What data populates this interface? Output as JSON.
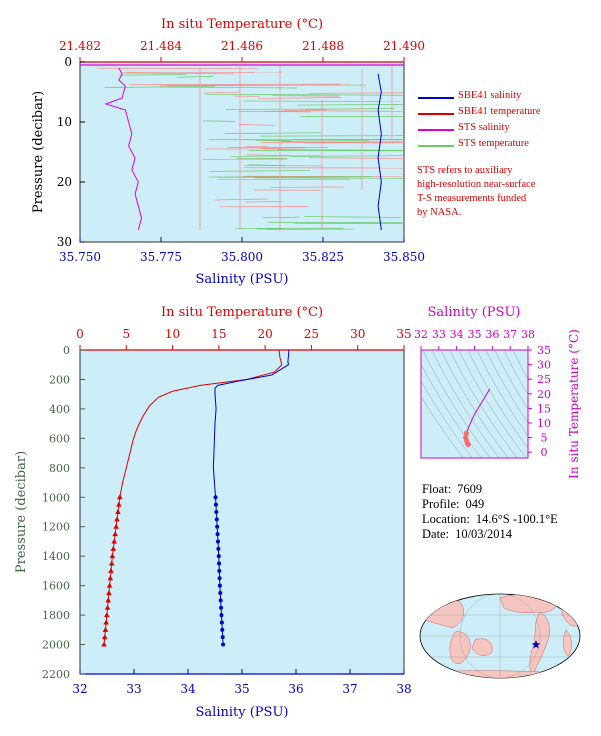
{
  "top_chart": {
    "temp_label": "In situ Temperature (°C)",
    "sal_label": "Salinity (PSU)",
    "pres_label": "Pressure (decibar)",
    "temp_ticks": [
      "21.482",
      "21.484",
      "21.486",
      "21.488",
      "21.490"
    ],
    "sal_ticks": [
      "35.750",
      "35.775",
      "35.800",
      "35.825",
      "35.850"
    ],
    "pres_ticks": [
      "0",
      "10",
      "20",
      "30"
    ]
  },
  "legend": {
    "items": [
      {
        "label": "SBE41 salinity",
        "color": "#0000cc"
      },
      {
        "label": "SBE41 temperature",
        "color": "#dd0000"
      },
      {
        "label": "STS salinity",
        "color": "#dd00dd"
      },
      {
        "label": "STS temperature",
        "color": "#66cc66"
      }
    ]
  },
  "note": {
    "lines": [
      "STS refers to auxiliary",
      "high-resolution near-surface",
      "T-S measurements funded",
      "by NASA."
    ]
  },
  "main_chart": {
    "temp_label": "In situ Temperature (°C)",
    "sal_label": "Salinity (PSU)",
    "pres_label": "Pressure (decibar)",
    "temp_ticks": [
      "0",
      "5",
      "10",
      "15",
      "20",
      "25",
      "30",
      "35"
    ],
    "sal_ticks": [
      "32",
      "33",
      "34",
      "35",
      "36",
      "37",
      "38"
    ],
    "pres_ticks": [
      "0",
      "200",
      "400",
      "600",
      "800",
      "1000",
      "1200",
      "1400",
      "1600",
      "1800",
      "2000",
      "2200"
    ]
  },
  "ts_chart": {
    "sal_label": "Salinity (PSU)",
    "temp_label": "In situ Temperature (°C)",
    "sal_ticks": [
      "32",
      "33",
      "34",
      "35",
      "36",
      "37",
      "38"
    ],
    "temp_ticks": [
      "0",
      "5",
      "10",
      "15",
      "20",
      "25",
      "30",
      "35"
    ]
  },
  "float_info": {
    "float_label": "Float:",
    "float_value": "7609",
    "profile_label": "Profile:",
    "profile_value": "049",
    "location_label": "Location:",
    "location_value": "14.6°S  -100.1°E",
    "date_label": "Date:",
    "date_value": "10/03/2014"
  },
  "colors": {
    "plot_bg": "#cdeef8",
    "salinity": "#0000cc",
    "temperature": "#dd0000",
    "sts_salinity": "#dd00dd",
    "sts_temperature": "#66cc66",
    "depth_axis": "#446644",
    "ts_axis": "#cc00cc"
  },
  "chart_data": [
    {
      "type": "line",
      "title": "",
      "xlabel_top": "In situ Temperature (°C)",
      "xlabel_bottom": "Salinity (PSU)",
      "ylabel": "Pressure (decibar)",
      "xlim_temperature": [
        21.482,
        21.49
      ],
      "xlim_salinity": [
        35.75,
        35.85
      ],
      "ylim": [
        30,
        0
      ],
      "series": [
        {
          "name": "STS salinity",
          "axis": "salinity",
          "points": [
            [
              35.762,
              1
            ],
            [
              35.763,
              2
            ],
            [
              35.762,
              3
            ],
            [
              35.764,
              4
            ],
            [
              35.763,
              6
            ],
            [
              35.758,
              7
            ],
            [
              35.764,
              8
            ],
            [
              35.765,
              10
            ],
            [
              35.766,
              12
            ],
            [
              35.765,
              14
            ],
            [
              35.767,
              16
            ],
            [
              35.766,
              18
            ],
            [
              35.768,
              20
            ],
            [
              35.767,
              22
            ],
            [
              35.768,
              24
            ],
            [
              35.769,
              26
            ],
            [
              35.768,
              28
            ]
          ]
        },
        {
          "name": "SBE41 salinity",
          "axis": "salinity",
          "points": [
            [
              35.842,
              2
            ],
            [
              35.843,
              5
            ],
            [
              35.842,
              8
            ],
            [
              35.843,
              12
            ],
            [
              35.842,
              16
            ],
            [
              35.843,
              20
            ],
            [
              35.842,
              24
            ],
            [
              35.843,
              28
            ]
          ]
        }
      ]
    },
    {
      "type": "line",
      "title": "",
      "xlabel_top": "In situ Temperature (°C)",
      "xlabel_bottom": "Salinity (PSU)",
      "ylabel": "Pressure (decibar)",
      "xlim_temperature": [
        0,
        35
      ],
      "xlim_salinity": [
        32,
        38
      ],
      "ylim": [
        2200,
        0
      ],
      "series": [
        {
          "name": "temperature",
          "axis": "temperature",
          "points": [
            [
              21.5,
              0
            ],
            [
              21.6,
              50
            ],
            [
              21.8,
              100
            ],
            [
              21.0,
              150
            ],
            [
              18.0,
              200
            ],
            [
              13.0,
              240
            ],
            [
              10.0,
              280
            ],
            [
              8.5,
              320
            ],
            [
              7.5,
              380
            ],
            [
              6.9,
              440
            ],
            [
              6.4,
              500
            ],
            [
              6.0,
              560
            ],
            [
              5.7,
              620
            ],
            [
              5.4,
              700
            ],
            [
              5.0,
              800
            ],
            [
              4.6,
              900
            ],
            [
              4.3,
              1000
            ],
            [
              3.9,
              1200
            ],
            [
              3.5,
              1400
            ],
            [
              3.2,
              1600
            ],
            [
              2.9,
              1800
            ],
            [
              2.6,
              2000
            ]
          ]
        },
        {
          "name": "salinity",
          "axis": "salinity",
          "points": [
            [
              35.87,
              0
            ],
            [
              35.85,
              80
            ],
            [
              35.86,
              100
            ],
            [
              35.55,
              170
            ],
            [
              34.95,
              210
            ],
            [
              34.55,
              240
            ],
            [
              34.5,
              260
            ],
            [
              34.5,
              300
            ],
            [
              34.52,
              400
            ],
            [
              34.5,
              500
            ],
            [
              34.49,
              600
            ],
            [
              34.48,
              700
            ],
            [
              34.47,
              800
            ],
            [
              34.49,
              900
            ],
            [
              34.51,
              1000
            ],
            [
              34.54,
              1200
            ],
            [
              34.57,
              1400
            ],
            [
              34.59,
              1600
            ],
            [
              34.62,
              1800
            ],
            [
              34.65,
              2000
            ]
          ]
        }
      ]
    },
    {
      "type": "line",
      "title": "",
      "xlabel": "Salinity (PSU)",
      "ylabel": "In situ Temperature (°C)",
      "xlim": [
        32,
        38
      ],
      "ylim": [
        -2,
        35
      ],
      "series": [
        {
          "points": [
            [
              35.86,
              21.7
            ],
            [
              35.5,
              18.0
            ],
            [
              35.0,
              13.0
            ],
            [
              34.7,
              9.0
            ],
            [
              34.55,
              6.5
            ],
            [
              34.5,
              5.0
            ],
            [
              34.55,
              4.0
            ],
            [
              34.6,
              3.0
            ],
            [
              34.65,
              2.6
            ]
          ]
        }
      ]
    }
  ]
}
